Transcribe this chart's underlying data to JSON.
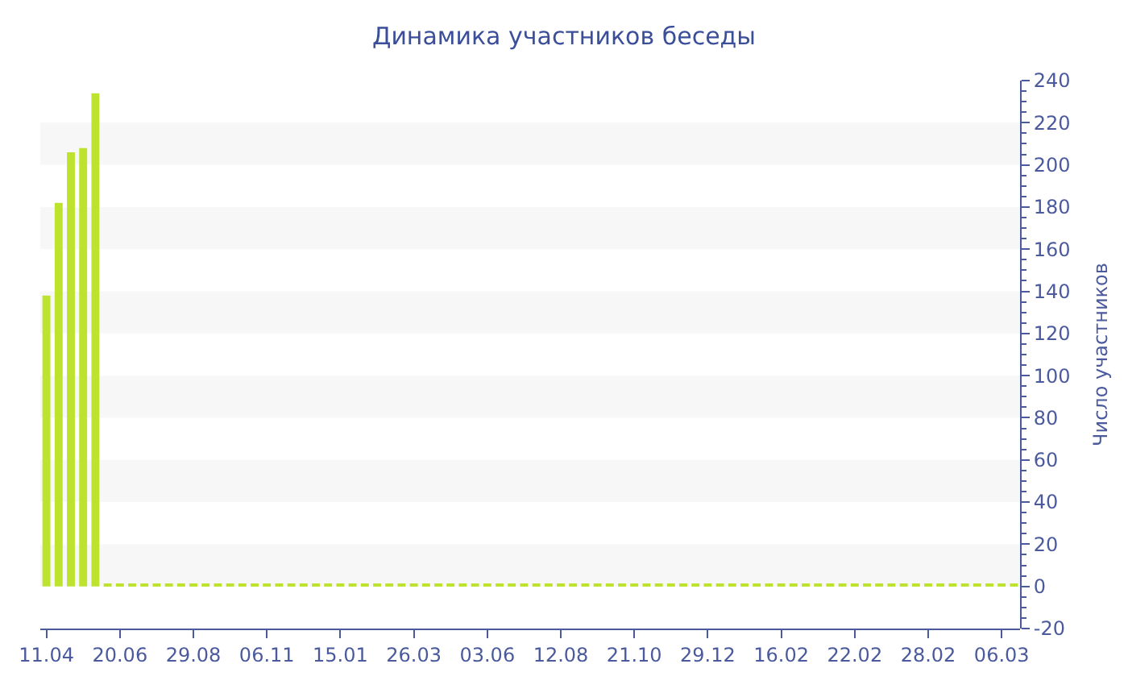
{
  "chart_data": {
    "type": "bar",
    "title": "Динамика участников беседы",
    "ylabel": "Число участников",
    "categories": [
      "11.04",
      null,
      null,
      null,
      null,
      null,
      "20.06",
      null,
      null,
      null,
      null,
      null,
      "29.08",
      null,
      null,
      null,
      null,
      null,
      "06.11",
      null,
      null,
      null,
      null,
      null,
      "15.01",
      null,
      null,
      null,
      null,
      null,
      "26.03",
      null,
      null,
      null,
      null,
      null,
      "03.06",
      null,
      null,
      null,
      null,
      null,
      "12.08",
      null,
      null,
      null,
      null,
      null,
      "21.10",
      null,
      null,
      null,
      null,
      null,
      "29.12",
      null,
      null,
      null,
      null,
      null,
      "16.02",
      null,
      null,
      null,
      null,
      null,
      "22.02",
      null,
      null,
      null,
      null,
      null,
      "28.02",
      null,
      null,
      null,
      null,
      null,
      "06.03",
      null
    ],
    "values": [
      138,
      182,
      206,
      208,
      234,
      1,
      1,
      1,
      1,
      1,
      1,
      1,
      1,
      1,
      1,
      1,
      1,
      1,
      1,
      1,
      1,
      1,
      1,
      1,
      1,
      1,
      1,
      1,
      1,
      1,
      1,
      1,
      1,
      1,
      1,
      1,
      1,
      1,
      1,
      1,
      1,
      1,
      1,
      1,
      1,
      1,
      1,
      1,
      1,
      1,
      1,
      1,
      1,
      1,
      1,
      1,
      1,
      1,
      1,
      1,
      1,
      1,
      1,
      1,
      1,
      1,
      1,
      1,
      1,
      1,
      1,
      1,
      1,
      1,
      1,
      1,
      1,
      1,
      1,
      1
    ],
    "color": "#bde32f",
    "ylim": [
      -20,
      240
    ],
    "yticks": [
      -20,
      0,
      20,
      40,
      60,
      80,
      100,
      120,
      140,
      160,
      180,
      200,
      220,
      240
    ],
    "bands": [
      {
        "axis": "y",
        "from": 0,
        "to": 20,
        "color": "#f7f7f7"
      },
      {
        "axis": "y",
        "from": 40,
        "to": 60,
        "color": "#f7f7f7"
      },
      {
        "axis": "y",
        "from": 80,
        "to": 100,
        "color": "#f7f7f7"
      },
      {
        "axis": "y",
        "from": 120,
        "to": 140,
        "color": "#f7f7f7"
      },
      {
        "axis": "y",
        "from": 160,
        "to": 180,
        "color": "#f7f7f7"
      },
      {
        "axis": "y",
        "from": 200,
        "to": 220,
        "color": "#f7f7f7"
      }
    ]
  }
}
